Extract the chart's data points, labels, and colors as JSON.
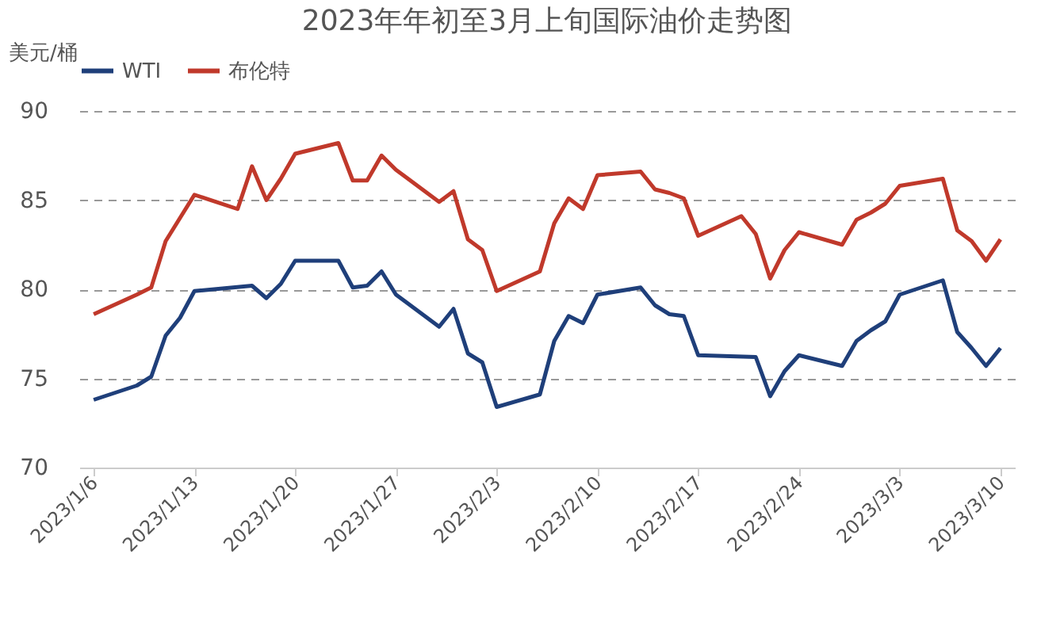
{
  "chart_data": {
    "type": "line",
    "title": "2023年年初至3月上旬国际油价走势图",
    "ylabel": "美元/桶",
    "series": [
      {
        "name": "WTI",
        "color": "#1f3f7a",
        "x": [
          "2023-01-06",
          "2023-01-09",
          "2023-01-10",
          "2023-01-11",
          "2023-01-12",
          "2023-01-13",
          "2023-01-17",
          "2023-01-18",
          "2023-01-19",
          "2023-01-20",
          "2023-01-23",
          "2023-01-24",
          "2023-01-25",
          "2023-01-26",
          "2023-01-27",
          "2023-01-30",
          "2023-01-31",
          "2023-02-01",
          "2023-02-02",
          "2023-02-03",
          "2023-02-06",
          "2023-02-07",
          "2023-02-08",
          "2023-02-09",
          "2023-02-10",
          "2023-02-13",
          "2023-02-14",
          "2023-02-15",
          "2023-02-16",
          "2023-02-17",
          "2023-02-21",
          "2023-02-22",
          "2023-02-23",
          "2023-02-24",
          "2023-02-27",
          "2023-02-28",
          "2023-03-01",
          "2023-03-02",
          "2023-03-03",
          "2023-03-06",
          "2023-03-07",
          "2023-03-08",
          "2023-03-09",
          "2023-03-10"
        ],
        "values": [
          73.8,
          74.6,
          75.1,
          77.4,
          78.4,
          79.9,
          80.2,
          79.5,
          80.3,
          81.6,
          81.6,
          80.1,
          80.2,
          81.0,
          79.7,
          77.9,
          78.9,
          76.4,
          75.9,
          73.4,
          74.1,
          77.1,
          78.5,
          78.1,
          79.7,
          80.1,
          79.1,
          78.6,
          78.5,
          76.3,
          76.2,
          74.0,
          75.4,
          76.3,
          75.7,
          77.1,
          77.7,
          78.2,
          79.7,
          80.5,
          77.6,
          76.7,
          75.7,
          76.7
        ]
      },
      {
        "name": "布伦特",
        "color": "#c0392b",
        "x": [
          "2023-01-06",
          "2023-01-09",
          "2023-01-10",
          "2023-01-11",
          "2023-01-12",
          "2023-01-13",
          "2023-01-16",
          "2023-01-17",
          "2023-01-18",
          "2023-01-19",
          "2023-01-20",
          "2023-01-23",
          "2023-01-24",
          "2023-01-25",
          "2023-01-26",
          "2023-01-27",
          "2023-01-30",
          "2023-01-31",
          "2023-02-01",
          "2023-02-02",
          "2023-02-03",
          "2023-02-06",
          "2023-02-07",
          "2023-02-08",
          "2023-02-09",
          "2023-02-10",
          "2023-02-13",
          "2023-02-14",
          "2023-02-15",
          "2023-02-16",
          "2023-02-17",
          "2023-02-20",
          "2023-02-21",
          "2023-02-22",
          "2023-02-23",
          "2023-02-24",
          "2023-02-27",
          "2023-02-28",
          "2023-03-01",
          "2023-03-02",
          "2023-03-03",
          "2023-03-06",
          "2023-03-07",
          "2023-03-08",
          "2023-03-09",
          "2023-03-10"
        ],
        "values": [
          78.6,
          79.7,
          80.1,
          82.7,
          84.0,
          85.3,
          84.5,
          86.9,
          85.0,
          86.2,
          87.6,
          88.2,
          86.1,
          86.1,
          87.5,
          86.7,
          84.9,
          85.5,
          82.8,
          82.2,
          79.9,
          81.0,
          83.7,
          85.1,
          84.5,
          86.4,
          86.6,
          85.6,
          85.4,
          85.1,
          83.0,
          84.1,
          83.1,
          80.6,
          82.2,
          83.2,
          82.5,
          83.9,
          84.3,
          84.8,
          85.8,
          86.2,
          83.3,
          82.7,
          81.6,
          82.8
        ]
      }
    ],
    "xlim": [
      "2023-01-05",
      "2023-03-11"
    ],
    "xticks": [
      {
        "value": "2023-01-06",
        "label": "2023/1/6"
      },
      {
        "value": "2023-01-13",
        "label": "2023/1/13"
      },
      {
        "value": "2023-01-20",
        "label": "2023/1/20"
      },
      {
        "value": "2023-01-27",
        "label": "2023/1/27"
      },
      {
        "value": "2023-02-03",
        "label": "2023/2/3"
      },
      {
        "value": "2023-02-10",
        "label": "2023/2/10"
      },
      {
        "value": "2023-02-17",
        "label": "2023/2/17"
      },
      {
        "value": "2023-02-24",
        "label": "2023/2/24"
      },
      {
        "value": "2023-03-03",
        "label": "2023/3/3"
      },
      {
        "value": "2023-03-10",
        "label": "2023/3/10"
      }
    ],
    "ylim": [
      70,
      90
    ],
    "yticks": [
      70,
      75,
      80,
      85,
      90
    ],
    "grid": "y",
    "legend": "top",
    "marker": "none",
    "line_style": "solid"
  }
}
